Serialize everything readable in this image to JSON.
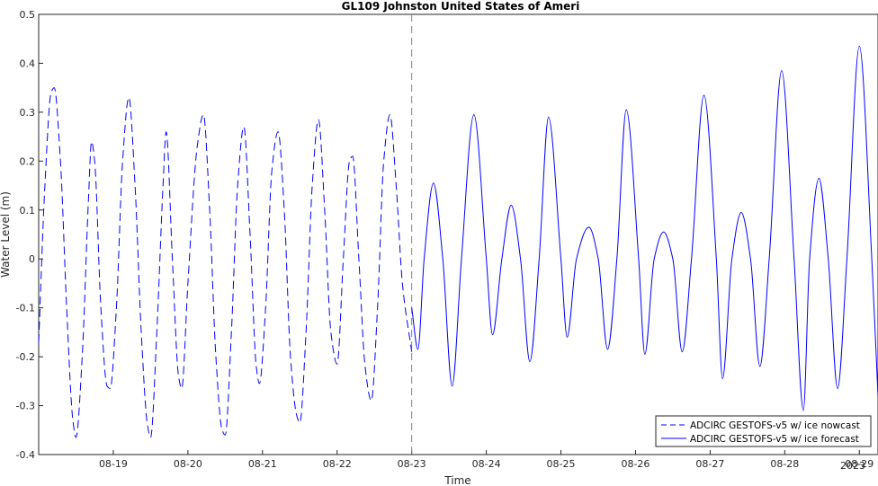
{
  "chart_data": {
    "type": "line",
    "title": "GL109 Johnston United States of Ameri",
    "xlabel": "Time",
    "ylabel": "Water Level (m)",
    "year_label": "2023",
    "xlim": [
      "2023-08-18 00:00",
      "2023-08-29 06:00"
    ],
    "ylim": [
      -0.4,
      0.5
    ],
    "yticks": [
      -0.4,
      -0.3,
      -0.2,
      -0.1,
      0,
      0.1,
      0.2,
      0.3,
      0.4,
      0.5
    ],
    "ytick_labels": [
      "-0.4",
      "-0.3",
      "-0.2",
      "-0.1",
      "0",
      "0.1",
      "0.2",
      "0.3",
      "0.4",
      "0.5"
    ],
    "xticks": [
      "2023-08-19",
      "2023-08-20",
      "2023-08-21",
      "2023-08-22",
      "2023-08-23",
      "2023-08-24",
      "2023-08-25",
      "2023-08-26",
      "2023-08-27",
      "2023-08-28",
      "2023-08-29"
    ],
    "xtick_labels": [
      "08-19",
      "08-20",
      "08-21",
      "08-22",
      "08-23",
      "08-24",
      "08-25",
      "08-26",
      "08-27",
      "08-28",
      "08-29"
    ],
    "divider_x": "2023-08-23 00:00",
    "grid": false,
    "legend_position": "bottom-right",
    "color": "#0000ff",
    "series": [
      {
        "name": "ADCIRC GESTOFS-v5 w/ ice nowcast",
        "style": "dashed",
        "points": [
          [
            "2023-08-18 00:00",
            -0.17
          ],
          [
            "2023-08-18 02:00",
            0.15
          ],
          [
            "2023-08-18 04:00",
            0.34
          ],
          [
            "2023-08-18 05:00",
            0.35
          ],
          [
            "2023-08-18 07:00",
            0.2
          ],
          [
            "2023-08-18 09:00",
            -0.1
          ],
          [
            "2023-08-18 11:00",
            -0.33
          ],
          [
            "2023-08-18 12:00",
            -0.365
          ],
          [
            "2023-08-18 14:00",
            -0.2
          ],
          [
            "2023-08-18 16:00",
            0.12
          ],
          [
            "2023-08-18 17:00",
            0.24
          ],
          [
            "2023-08-18 18:00",
            0.2
          ],
          [
            "2023-08-18 20:00",
            -0.1
          ],
          [
            "2023-08-18 22:00",
            -0.26
          ],
          [
            "2023-08-18 23:00",
            -0.265
          ],
          [
            "2023-08-19 01:00",
            -0.1
          ],
          [
            "2023-08-19 03:00",
            0.2
          ],
          [
            "2023-08-19 05:00",
            0.33
          ],
          [
            "2023-08-19 07:00",
            0.15
          ],
          [
            "2023-08-19 09:00",
            -0.15
          ],
          [
            "2023-08-19 11:00",
            -0.34
          ],
          [
            "2023-08-19 12:00",
            -0.365
          ],
          [
            "2023-08-19 14:00",
            -0.15
          ],
          [
            "2023-08-19 16:00",
            0.15
          ],
          [
            "2023-08-19 17:00",
            0.26
          ],
          [
            "2023-08-19 19:00",
            0.0
          ],
          [
            "2023-08-19 21:00",
            -0.24
          ],
          [
            "2023-08-19 22:00",
            -0.265
          ],
          [
            "2023-08-20 00:00",
            -0.05
          ],
          [
            "2023-08-20 03:00",
            0.23
          ],
          [
            "2023-08-20 05:00",
            0.295
          ],
          [
            "2023-08-20 07:00",
            0.1
          ],
          [
            "2023-08-20 09:00",
            -0.2
          ],
          [
            "2023-08-20 11:00",
            -0.35
          ],
          [
            "2023-08-20 12:00",
            -0.36
          ],
          [
            "2023-08-20 14:00",
            -0.15
          ],
          [
            "2023-08-20 16:00",
            0.15
          ],
          [
            "2023-08-20 18:00",
            0.27
          ],
          [
            "2023-08-20 20:00",
            0.05
          ],
          [
            "2023-08-20 22:00",
            -0.22
          ],
          [
            "2023-08-20 23:00",
            -0.255
          ],
          [
            "2023-08-21 01:00",
            -0.1
          ],
          [
            "2023-08-21 03:00",
            0.18
          ],
          [
            "2023-08-21 05:00",
            0.26
          ],
          [
            "2023-08-21 07:00",
            0.1
          ],
          [
            "2023-08-21 09:00",
            -0.2
          ],
          [
            "2023-08-21 11:00",
            -0.32
          ],
          [
            "2023-08-21 12:00",
            -0.335
          ],
          [
            "2023-08-21 14:00",
            -0.15
          ],
          [
            "2023-08-21 16:00",
            0.15
          ],
          [
            "2023-08-21 18:00",
            0.285
          ],
          [
            "2023-08-21 20:00",
            0.1
          ],
          [
            "2023-08-21 22:00",
            -0.15
          ],
          [
            "2023-08-22 00:00",
            -0.215
          ],
          [
            "2023-08-22 02:00",
            0.0
          ],
          [
            "2023-08-22 04:00",
            0.2
          ],
          [
            "2023-08-22 05:00",
            0.21
          ],
          [
            "2023-08-22 07:00",
            0.0
          ],
          [
            "2023-08-22 09:00",
            -0.22
          ],
          [
            "2023-08-22 11:00",
            -0.29
          ],
          [
            "2023-08-22 13:00",
            -0.1
          ],
          [
            "2023-08-22 15:00",
            0.2
          ],
          [
            "2023-08-22 17:00",
            0.295
          ],
          [
            "2023-08-22 19:00",
            0.15
          ],
          [
            "2023-08-22 21:00",
            -0.05
          ],
          [
            "2023-08-23 00:00",
            -0.19
          ]
        ]
      },
      {
        "name": "ADCIRC GESTOFS-v5 w/ ice forecast",
        "style": "solid",
        "points": [
          [
            "2023-08-23 00:00",
            -0.1
          ],
          [
            "2023-08-23 02:00",
            -0.185
          ],
          [
            "2023-08-23 04:00",
            0.0
          ],
          [
            "2023-08-23 07:00",
            0.155
          ],
          [
            "2023-08-23 10:00",
            0.0
          ],
          [
            "2023-08-23 13:00",
            -0.26
          ],
          [
            "2023-08-23 16:00",
            0.0
          ],
          [
            "2023-08-23 20:00",
            0.295
          ],
          [
            "2023-08-24 00:00",
            0.0
          ],
          [
            "2023-08-24 02:00",
            -0.155
          ],
          [
            "2023-08-24 05:00",
            0.0
          ],
          [
            "2023-08-24 08:00",
            0.11
          ],
          [
            "2023-08-24 11:00",
            0.0
          ],
          [
            "2023-08-24 14:00",
            -0.21
          ],
          [
            "2023-08-24 17:00",
            0.0
          ],
          [
            "2023-08-24 20:00",
            0.29
          ],
          [
            "2023-08-25 00:00",
            0.0
          ],
          [
            "2023-08-25 02:00",
            -0.16
          ],
          [
            "2023-08-25 05:00",
            0.0
          ],
          [
            "2023-08-25 09:00",
            0.065
          ],
          [
            "2023-08-25 12:00",
            0.0
          ],
          [
            "2023-08-25 15:00",
            -0.185
          ],
          [
            "2023-08-25 18:00",
            0.0
          ],
          [
            "2023-08-25 21:00",
            0.305
          ],
          [
            "2023-08-26 01:00",
            0.0
          ],
          [
            "2023-08-26 03:00",
            -0.195
          ],
          [
            "2023-08-26 06:00",
            0.0
          ],
          [
            "2023-08-26 09:00",
            0.055
          ],
          [
            "2023-08-26 12:00",
            0.0
          ],
          [
            "2023-08-26 15:00",
            -0.19
          ],
          [
            "2023-08-26 18:00",
            0.0
          ],
          [
            "2023-08-26 22:00",
            0.335
          ],
          [
            "2023-08-27 02:00",
            0.0
          ],
          [
            "2023-08-27 04:00",
            -0.245
          ],
          [
            "2023-08-27 07:00",
            0.0
          ],
          [
            "2023-08-27 10:00",
            0.095
          ],
          [
            "2023-08-27 13:00",
            0.0
          ],
          [
            "2023-08-27 16:00",
            -0.22
          ],
          [
            "2023-08-27 19:00",
            0.0
          ],
          [
            "2023-08-27 23:00",
            0.385
          ],
          [
            "2023-08-28 03:00",
            0.0
          ],
          [
            "2023-08-28 06:00",
            -0.31
          ],
          [
            "2023-08-28 08:00",
            0.0
          ],
          [
            "2023-08-28 11:00",
            0.165
          ],
          [
            "2023-08-28 14:00",
            0.0
          ],
          [
            "2023-08-28 17:00",
            -0.265
          ],
          [
            "2023-08-28 20:00",
            0.0
          ],
          [
            "2023-08-29 00:00",
            0.435
          ],
          [
            "2023-08-29 04:00",
            0.0
          ],
          [
            "2023-08-29 06:00",
            -0.28
          ]
        ]
      }
    ]
  }
}
